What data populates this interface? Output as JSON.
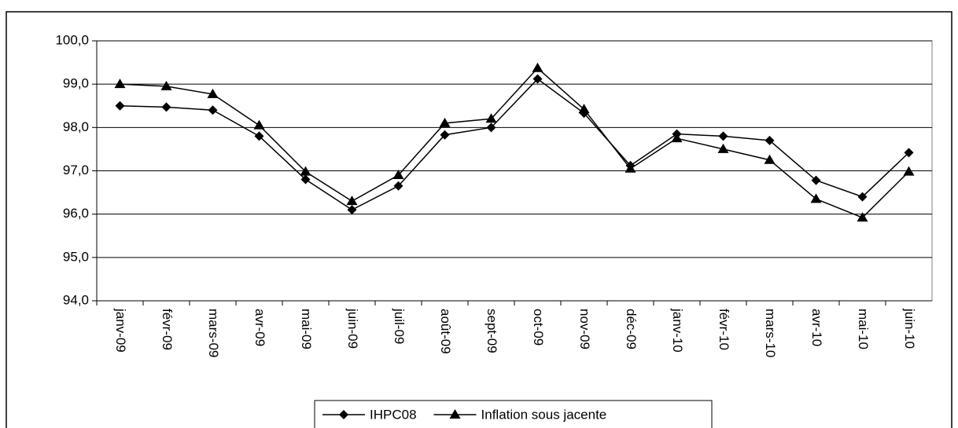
{
  "chart_data": {
    "type": "line",
    "categories": [
      "janv-09",
      "févr-09",
      "mars-09",
      "avr-09",
      "mai-09",
      "juin-09",
      "juil-09",
      "août-09",
      "sept-09",
      "oct-09",
      "nov-09",
      "déc-09",
      "janv-10",
      "févr-10",
      "mars-10",
      "avr-10",
      "mai-10",
      "juin-10"
    ],
    "series": [
      {
        "name": "IHPC08",
        "color": "#000000",
        "marker": "diamond",
        "values": [
          98.5,
          98.47,
          98.4,
          97.8,
          96.8,
          96.1,
          96.65,
          97.83,
          98.0,
          99.12,
          98.33,
          97.12,
          97.85,
          97.8,
          97.7,
          96.78,
          96.4,
          97.42
        ]
      },
      {
        "name": "Inflation sous jacente",
        "color": "#000000",
        "marker": "triangle",
        "values": [
          99.0,
          98.95,
          98.77,
          98.05,
          96.98,
          96.3,
          96.9,
          98.1,
          98.2,
          99.37,
          98.42,
          97.05,
          97.75,
          97.5,
          97.25,
          96.35,
          95.92,
          96.98
        ]
      }
    ],
    "ylim": [
      94,
      100
    ],
    "yticks": [
      {
        "value": 94,
        "label": "94,0"
      },
      {
        "value": 95,
        "label": "95,0"
      },
      {
        "value": 96,
        "label": "96,0"
      },
      {
        "value": 97,
        "label": "97,0"
      },
      {
        "value": 98,
        "label": "98,0"
      },
      {
        "value": 99,
        "label": "99,0"
      },
      {
        "value": 100,
        "label": "100,0"
      }
    ],
    "grid": true,
    "legend": "bottom"
  }
}
